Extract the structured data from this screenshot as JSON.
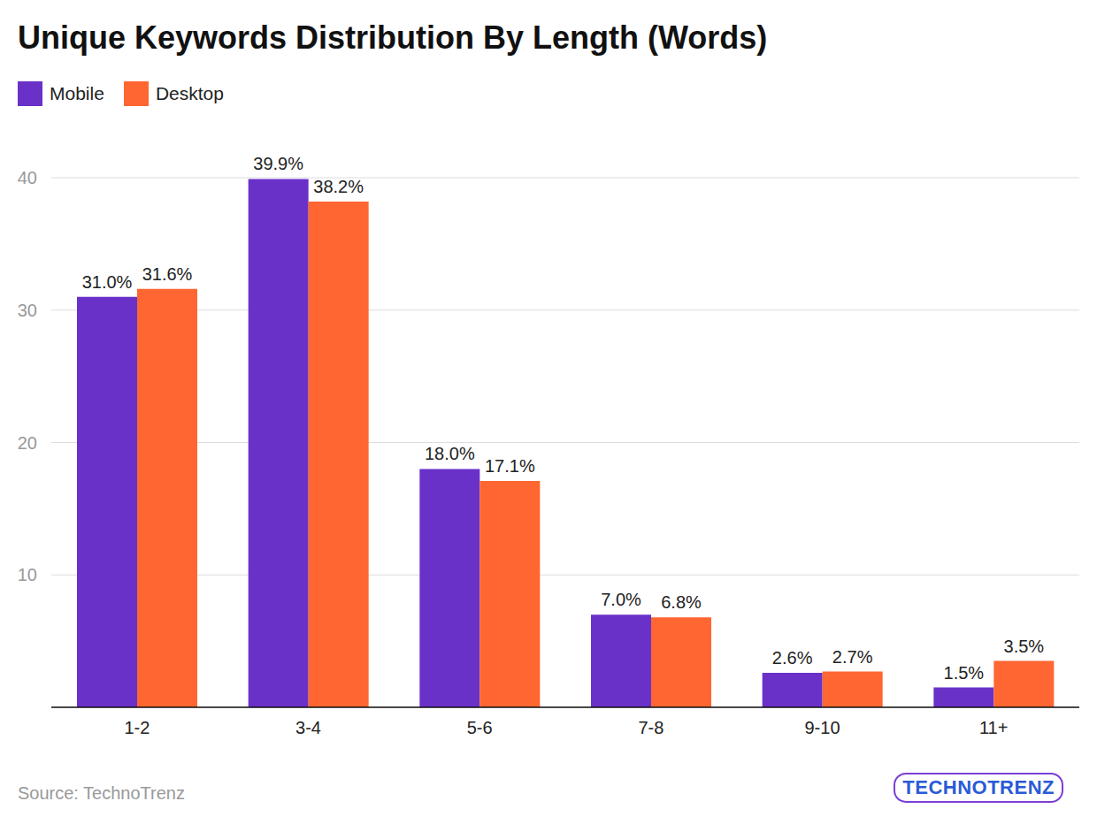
{
  "chart_data": {
    "type": "bar",
    "title": "Unique Keywords Distribution By Length (Words)",
    "categories": [
      "1-2",
      "3-4",
      "5-6",
      "7-8",
      "9-10",
      "11+"
    ],
    "series": [
      {
        "name": "Mobile",
        "color": "#6a31c9",
        "values": [
          31.0,
          39.9,
          18.0,
          7.0,
          2.6,
          1.5
        ],
        "value_labels": [
          "31.0%",
          "39.9%",
          "18.0%",
          "7.0%",
          "2.6%",
          "1.5%"
        ]
      },
      {
        "name": "Desktop",
        "color": "#ff6631",
        "values": [
          31.6,
          38.2,
          17.1,
          6.8,
          2.7,
          3.5
        ],
        "value_labels": [
          "31.6%",
          "38.2%",
          "17.1%",
          "6.8%",
          "2.7%",
          "3.5%"
        ]
      }
    ],
    "ylim": [
      0,
      40
    ],
    "yticks": [
      10,
      20,
      30,
      40
    ],
    "grid": true,
    "legend": "top left",
    "data_labels": true,
    "annotations": [
      "Source: TechnoTrenz",
      "TECHNOTRENZ"
    ]
  }
}
